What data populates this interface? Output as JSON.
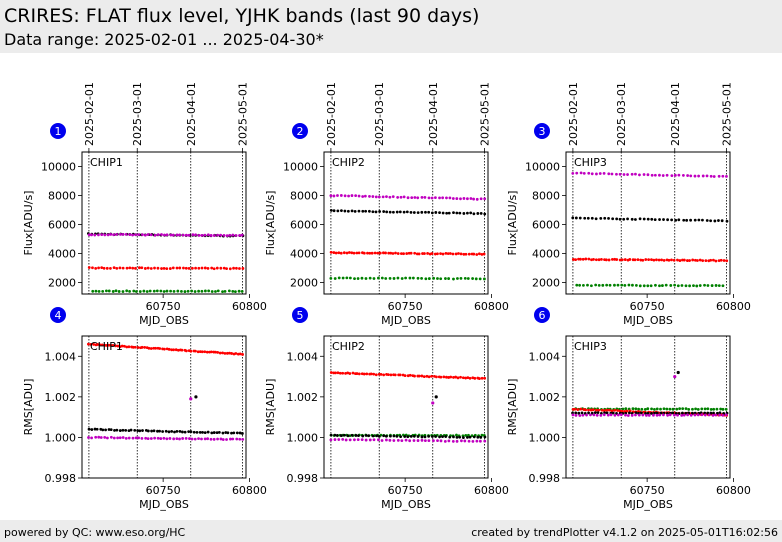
{
  "header": {
    "title": "CRIRES: FLAT flux level, YJHK bands (last 90 days)",
    "subtitle": "Data range: 2025-02-01 ... 2025-04-30*"
  },
  "footer": {
    "left": "powered by QC: www.eso.org/HC",
    "right": "created by trendPlotter v4.1.2 on 2025-05-01T16:02:56"
  },
  "date_ticks": [
    {
      "label": "2025-02-01",
      "mjd": 60707
    },
    {
      "label": "2025-03-01",
      "mjd": 60735
    },
    {
      "label": "2025-04-01",
      "mjd": 60766
    },
    {
      "label": "2025-05-01",
      "mjd": 60796
    }
  ],
  "colors": {
    "black": "#000000",
    "magenta": "#c000c0",
    "red": "#ff0000",
    "green": "#008000",
    "badge": "#0000ee"
  },
  "chart_data": [
    {
      "id": 1,
      "type": "scatter",
      "badge": "1",
      "chip_label": "CHIP1",
      "xlabel": "MJD_OBS",
      "ylabel": "Flux[ADU/s]",
      "xlim": [
        60703,
        60798
      ],
      "ylim": [
        1200,
        11000
      ],
      "yticks": [
        "2000",
        "4000",
        "6000",
        "8000",
        "10000"
      ],
      "ytick_values": [
        2000,
        4000,
        6000,
        8000,
        10000
      ],
      "xticks": [
        "60750",
        "60800"
      ],
      "xtick_values": [
        60750,
        60800
      ],
      "grid": false,
      "series": [
        {
          "color": "black",
          "y_start": 5350,
          "y_end": 5200,
          "x_start": 60707,
          "x_end": 60796,
          "n": 50
        },
        {
          "color": "magenta",
          "y_start": 5300,
          "y_end": 5250,
          "x_start": 60707,
          "x_end": 60796,
          "n": 50
        },
        {
          "color": "red",
          "y_start": 3000,
          "y_end": 2960,
          "x_start": 60707,
          "x_end": 60796,
          "n": 50
        },
        {
          "color": "green",
          "y_start": 1400,
          "y_end": 1390,
          "x_start": 60709,
          "x_end": 60796,
          "n": 45
        }
      ]
    },
    {
      "id": 2,
      "type": "scatter",
      "badge": "2",
      "chip_label": "CHIP2",
      "xlabel": "MJD_OBS",
      "ylabel": "Flux[ADU/s]",
      "xlim": [
        60703,
        60798
      ],
      "ylim": [
        1200,
        11000
      ],
      "yticks": [
        "2000",
        "4000",
        "6000",
        "8000",
        "10000"
      ],
      "ytick_values": [
        2000,
        4000,
        6000,
        8000,
        10000
      ],
      "xticks": [
        "60750",
        "60800"
      ],
      "xtick_values": [
        60750,
        60800
      ],
      "grid": false,
      "series": [
        {
          "color": "magenta",
          "y_start": 8000,
          "y_end": 7750,
          "x_start": 60707,
          "x_end": 60796,
          "n": 45
        },
        {
          "color": "black",
          "y_start": 6950,
          "y_end": 6750,
          "x_start": 60707,
          "x_end": 60796,
          "n": 45
        },
        {
          "color": "red",
          "y_start": 4050,
          "y_end": 3950,
          "x_start": 60707,
          "x_end": 60796,
          "n": 60
        },
        {
          "color": "green",
          "y_start": 2300,
          "y_end": 2250,
          "x_start": 60707,
          "x_end": 60796,
          "n": 40
        }
      ]
    },
    {
      "id": 3,
      "type": "scatter",
      "badge": "3",
      "chip_label": "CHIP3",
      "xlabel": "MJD_OBS",
      "ylabel": "Flux[ADU/s]",
      "xlim": [
        60703,
        60798
      ],
      "ylim": [
        1200,
        11000
      ],
      "yticks": [
        "2000",
        "4000",
        "6000",
        "8000",
        "10000"
      ],
      "ytick_values": [
        2000,
        4000,
        6000,
        8000,
        10000
      ],
      "xticks": [
        "60750",
        "60800"
      ],
      "xtick_values": [
        60750,
        60800
      ],
      "grid": false,
      "series": [
        {
          "color": "magenta",
          "y_start": 9550,
          "y_end": 9300,
          "x_start": 60707,
          "x_end": 60796,
          "n": 40
        },
        {
          "color": "black",
          "y_start": 6450,
          "y_end": 6250,
          "x_start": 60707,
          "x_end": 60796,
          "n": 40
        },
        {
          "color": "red",
          "y_start": 3600,
          "y_end": 3500,
          "x_start": 60707,
          "x_end": 60796,
          "n": 60
        },
        {
          "color": "green",
          "y_start": 1800,
          "y_end": 1780,
          "x_start": 60709,
          "x_end": 60794,
          "n": 40
        }
      ]
    },
    {
      "id": 4,
      "type": "scatter",
      "badge": "4",
      "chip_label": "CHIP1",
      "xlabel": "MJD_OBS",
      "ylabel": "RMS[ADU]",
      "xlim": [
        60703,
        60798
      ],
      "ylim": [
        0.998,
        1.005
      ],
      "yticks": [
        "0.998",
        "1.000",
        "1.002",
        "1.004"
      ],
      "ytick_values": [
        0.998,
        1.0,
        1.002,
        1.004
      ],
      "xticks": [
        "60750",
        "60800"
      ],
      "xtick_values": [
        60750,
        60800
      ],
      "grid": false,
      "series": [
        {
          "color": "red",
          "y_start": 1.0046,
          "y_end": 1.0041,
          "x_start": 60707,
          "x_end": 60796,
          "n": 70
        },
        {
          "color": "black",
          "y_start": 1.0004,
          "y_end": 1.0002,
          "x_start": 60707,
          "x_end": 60796,
          "n": 55
        },
        {
          "color": "magenta",
          "y_start": 1.0,
          "y_end": 0.9999,
          "x_start": 60707,
          "x_end": 60796,
          "n": 50
        }
      ],
      "points": [
        {
          "color": "magenta",
          "x": 60766,
          "y": 1.0019
        },
        {
          "color": "black",
          "x": 60769,
          "y": 1.002
        }
      ]
    },
    {
      "id": 5,
      "type": "scatter",
      "badge": "5",
      "chip_label": "CHIP2",
      "xlabel": "MJD_OBS",
      "ylabel": "RMS[ADU]",
      "xlim": [
        60703,
        60798
      ],
      "ylim": [
        0.998,
        1.005
      ],
      "yticks": [
        "0.998",
        "1.000",
        "1.002",
        "1.004"
      ],
      "ytick_values": [
        0.998,
        1.0,
        1.002,
        1.004
      ],
      "xticks": [
        "60750",
        "60800"
      ],
      "xtick_values": [
        60750,
        60800
      ],
      "grid": false,
      "series": [
        {
          "color": "red",
          "y_start": 1.0032,
          "y_end": 1.0029,
          "x_start": 60707,
          "x_end": 60796,
          "n": 65
        },
        {
          "color": "green",
          "y_start": 1.0001,
          "y_end": 1.0001,
          "x_start": 60707,
          "x_end": 60796,
          "n": 50
        },
        {
          "color": "black",
          "y_start": 1.0001,
          "y_end": 1.0,
          "x_start": 60707,
          "x_end": 60796,
          "n": 45
        },
        {
          "color": "magenta",
          "y_start": 0.9999,
          "y_end": 0.9998,
          "x_start": 60707,
          "x_end": 60796,
          "n": 40
        }
      ],
      "points": [
        {
          "color": "magenta",
          "x": 60766,
          "y": 1.0017
        },
        {
          "color": "black",
          "x": 60768,
          "y": 1.002
        }
      ]
    },
    {
      "id": 6,
      "type": "scatter",
      "badge": "6",
      "chip_label": "CHIP3",
      "xlabel": "MJD_OBS",
      "ylabel": "RMS[ADU]",
      "xlim": [
        60703,
        60798
      ],
      "ylim": [
        0.998,
        1.005
      ],
      "yticks": [
        "0.998",
        "1.000",
        "1.002",
        "1.004"
      ],
      "ytick_values": [
        0.998,
        1.0,
        1.002,
        1.004
      ],
      "xticks": [
        "60750",
        "60800"
      ],
      "xtick_values": [
        60750,
        60800
      ],
      "grid": false,
      "series": [
        {
          "color": "green",
          "y_start": 1.0014,
          "y_end": 1.0014,
          "x_start": 60707,
          "x_end": 60796,
          "n": 50
        },
        {
          "color": "red",
          "y_start": 1.0014,
          "y_end": 1.0011,
          "x_start": 60707,
          "x_end": 60796,
          "n": 60
        },
        {
          "color": "black",
          "y_start": 1.0012,
          "y_end": 1.0012,
          "x_start": 60707,
          "x_end": 60796,
          "n": 50
        },
        {
          "color": "magenta",
          "y_start": 1.0011,
          "y_end": 1.0011,
          "x_start": 60707,
          "x_end": 60796,
          "n": 45
        }
      ],
      "points": [
        {
          "color": "magenta",
          "x": 60766,
          "y": 1.003
        },
        {
          "color": "black",
          "x": 60768,
          "y": 1.0032
        }
      ]
    }
  ]
}
